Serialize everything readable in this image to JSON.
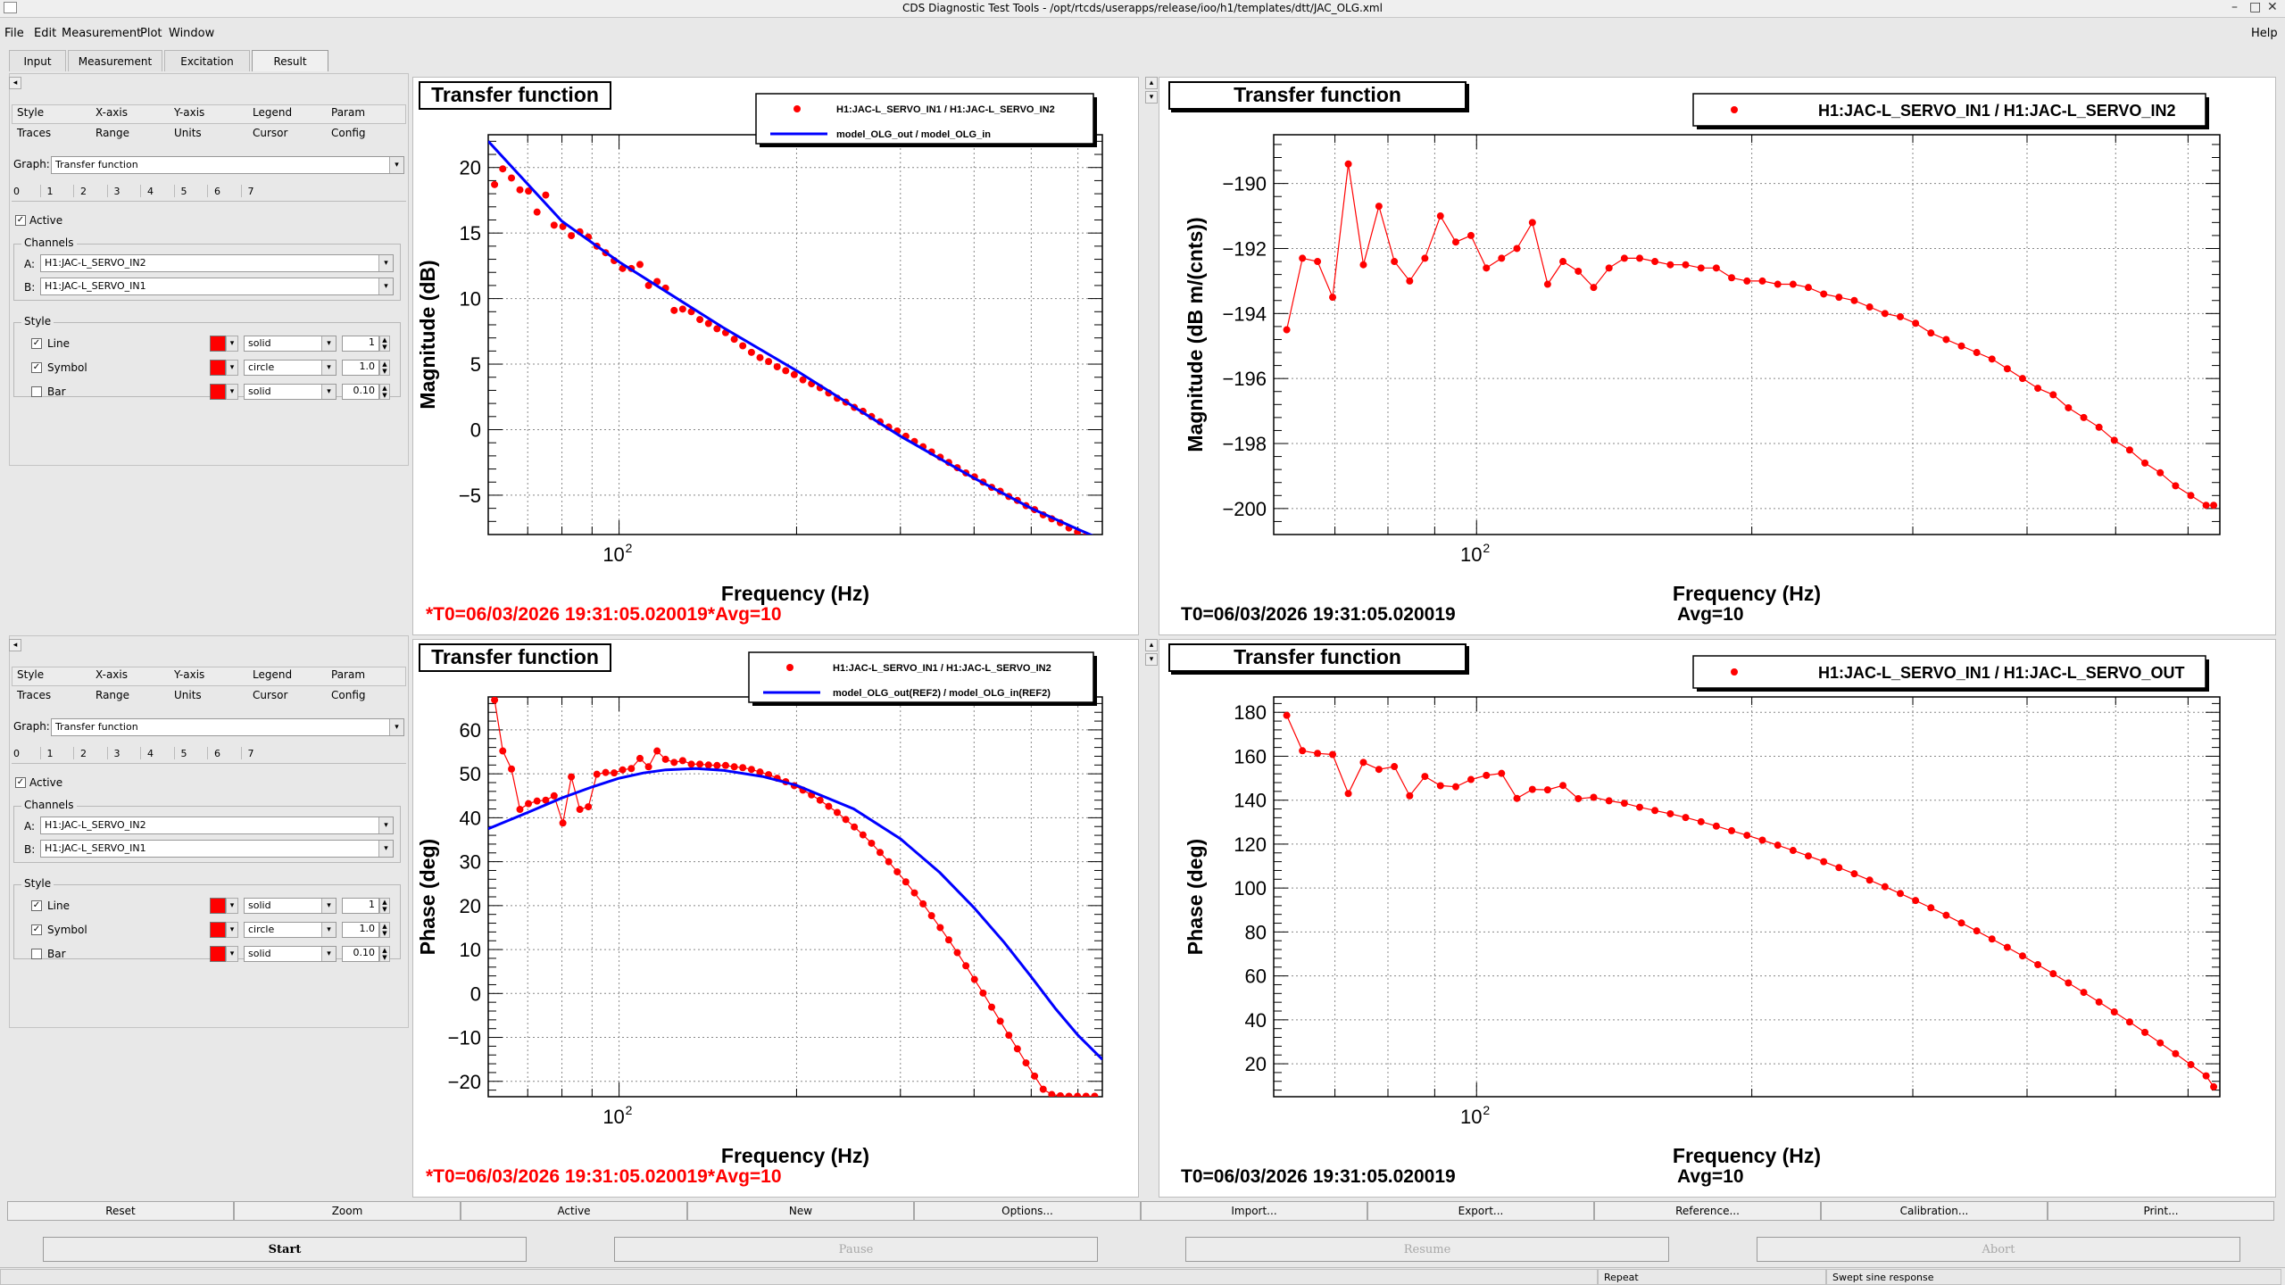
{
  "window": {
    "title": "CDS Diagnostic Test Tools - /opt/rtcds/userapps/release/ioo/h1/templates/dtt/JAC_OLG.xml",
    "help": "Help"
  },
  "menu": [
    "File",
    "Edit",
    "Measurement",
    "Plot",
    "Window"
  ],
  "main_tabs": [
    "Input",
    "Measurement",
    "Excitation",
    "Result"
  ],
  "panels": [
    {
      "tabs_row1": [
        "Style",
        "X-axis",
        "Y-axis",
        "Legend",
        "Param"
      ],
      "tabs_row2": [
        "Traces",
        "Range",
        "Units",
        "Cursor",
        "Config"
      ],
      "graph_label": "Graph:",
      "graph_value": "Transfer function",
      "trace_numbers": [
        "0",
        "1",
        "2",
        "3",
        "4",
        "5",
        "6",
        "7"
      ],
      "active_label": "Active",
      "channels_title": "Channels",
      "channel_a_label": "A:",
      "channel_a": "H1:JAC-L_SERVO_IN2",
      "channel_b_label": "B:",
      "channel_b": "H1:JAC-L_SERVO_IN1",
      "style_title": "Style",
      "style_rows": [
        {
          "label": "Line",
          "checked": true,
          "kind": "solid",
          "size": "1"
        },
        {
          "label": "Symbol",
          "checked": true,
          "kind": "circle",
          "size": "1.0"
        },
        {
          "label": "Bar",
          "checked": false,
          "kind": "solid",
          "size": "0.10"
        }
      ]
    },
    {
      "tabs_row1": [
        "Style",
        "X-axis",
        "Y-axis",
        "Legend",
        "Param"
      ],
      "tabs_row2": [
        "Traces",
        "Range",
        "Units",
        "Cursor",
        "Config"
      ],
      "graph_label": "Graph:",
      "graph_value": "Transfer function",
      "trace_numbers": [
        "0",
        "1",
        "2",
        "3",
        "4",
        "5",
        "6",
        "7"
      ],
      "active_label": "Active",
      "channels_title": "Channels",
      "channel_a_label": "A:",
      "channel_a": "H1:JAC-L_SERVO_IN2",
      "channel_b_label": "B:",
      "channel_b": "H1:JAC-L_SERVO_IN1",
      "style_title": "Style",
      "style_rows": [
        {
          "label": "Line",
          "checked": true,
          "kind": "solid",
          "size": "1"
        },
        {
          "label": "Symbol",
          "checked": true,
          "kind": "circle",
          "size": "1.0"
        },
        {
          "label": "Bar",
          "checked": false,
          "kind": "solid",
          "size": "0.10"
        }
      ]
    }
  ],
  "plots": [
    {
      "title": "Transfer function",
      "footer_t0": "*T0=06/03/2026 19:31:05.020019*Avg=10",
      "footer_avg": ""
    },
    {
      "title": "Transfer function",
      "footer_t0": "T0=06/03/2026 19:31:05.020019",
      "footer_avg": "Avg=10"
    },
    {
      "title": "Transfer function",
      "footer_t0": "*T0=06/03/2026 19:31:05.020019*Avg=10",
      "footer_avg": ""
    },
    {
      "title": "Transfer function",
      "footer_t0": "T0=06/03/2026 19:31:05.020019",
      "footer_avg": "Avg=10"
    }
  ],
  "bottom_buttons": [
    "Reset",
    "Zoom",
    "Active",
    "New",
    "Options...",
    "Import...",
    "Export...",
    "Reference...",
    "Calibration...",
    "Print..."
  ],
  "action_buttons": [
    "Start",
    "Pause",
    "Resume",
    "Abort"
  ],
  "status": {
    "repeat": "Repeat",
    "mode": "Swept sine response"
  },
  "chart_data": [
    {
      "type": "line",
      "title": "Transfer function",
      "xlabel": "Frequency (Hz)",
      "ylabel": "Magnitude (dB)",
      "xscale": "log",
      "xlim": [
        60,
        660
      ],
      "ylim": [
        -8,
        22.5
      ],
      "xticks": [
        {
          "v": 100,
          "base": "10",
          "exp": "2"
        }
      ],
      "yticks": [
        -5,
        0,
        5,
        10,
        15,
        20
      ],
      "legend_position": "top-right",
      "grid": true,
      "series": [
        {
          "name": "H1:JAC-L_SERVO_IN1 / H1:JAC-L_SERVO_IN2",
          "color": "#ff0000",
          "marker": "circle",
          "line": false,
          "x": [
            61.5,
            63.5,
            65.7,
            67.9,
            70.2,
            72.6,
            75.1,
            77.6,
            80.3,
            83.0,
            85.8,
            88.7,
            91.7,
            94.9,
            98.1,
            101.4,
            104.9,
            108.5,
            112.2,
            116.0,
            119.9,
            124.0,
            128.2,
            132.6,
            137.1,
            141.8,
            146.6,
            151.6,
            156.8,
            162.1,
            167.7,
            173.4,
            179.3,
            185.4,
            191.7,
            198.2,
            205.0,
            212.0,
            219.2,
            226.7,
            234.4,
            242.4,
            250.6,
            259.2,
            268.0,
            277.1,
            286.6,
            296.3,
            306.4,
            316.9,
            327.7,
            338.8,
            350.4,
            362.3,
            374.6,
            387.4,
            400.6,
            414.3,
            428.4,
            443.0,
            458.1,
            473.7,
            489.9,
            506.6,
            523.9,
            541.7,
            560.2,
            579.3,
            599.0,
            619.4,
            640.5,
            655.0
          ],
          "y": [
            18.7,
            19.9,
            19.2,
            18.3,
            18.2,
            16.6,
            17.9,
            15.6,
            15.5,
            14.8,
            15.1,
            14.7,
            14.0,
            13.5,
            12.9,
            12.3,
            12.3,
            12.6,
            11.0,
            11.3,
            10.8,
            9.1,
            9.2,
            9.0,
            8.4,
            8.1,
            7.7,
            7.4,
            6.9,
            6.4,
            5.9,
            5.5,
            5.2,
            4.8,
            4.5,
            4.2,
            3.8,
            3.5,
            3.2,
            2.8,
            2.4,
            2.1,
            1.7,
            1.4,
            1.0,
            0.6,
            0.2,
            -0.1,
            -0.5,
            -0.9,
            -1.3,
            -1.7,
            -2.1,
            -2.5,
            -2.9,
            -3.3,
            -3.6,
            -4.0,
            -4.4,
            -4.7,
            -5.1,
            -5.4,
            -5.8,
            -6.1,
            -6.5,
            -6.8,
            -7.1,
            -7.5,
            -7.8,
            -8.1,
            -8.4,
            -8.7
          ]
        },
        {
          "name": "model_OLG_out / model_OLG_in",
          "color": "#0000ff",
          "marker": "none",
          "line": true,
          "x": [
            60,
            80,
            100,
            150,
            200,
            300,
            400,
            500,
            600,
            660
          ],
          "y": [
            22.0,
            15.9,
            12.8,
            7.8,
            4.5,
            -0.5,
            -3.7,
            -6.0,
            -7.6,
            -8.4
          ]
        }
      ]
    },
    {
      "type": "line",
      "title": "Transfer function",
      "xlabel": "Frequency (Hz)",
      "ylabel": "Magnitude (dB m/(cnts))",
      "xscale": "log",
      "xlim": [
        60,
        650
      ],
      "ylim": [
        -200.8,
        -188.5
      ],
      "xticks": [
        {
          "v": 100,
          "base": "10",
          "exp": "2"
        }
      ],
      "yticks": [
        -200,
        -198,
        -196,
        -194,
        -192,
        -190
      ],
      "legend_position": "top-right",
      "grid": true,
      "series": [
        {
          "name": "H1:JAC-L_SERVO_IN1 / H1:JAC-L_SERVO_IN2",
          "color": "#ff0000",
          "marker": "circle",
          "line": true,
          "x": [
            62.0,
            64.5,
            67.0,
            69.6,
            72.4,
            75.2,
            78.2,
            81.3,
            84.5,
            87.8,
            91.3,
            94.9,
            98.6,
            102.5,
            106.5,
            110.7,
            115.1,
            119.6,
            124.3,
            129.2,
            134.3,
            139.6,
            145.1,
            150.8,
            156.7,
            162.9,
            169.3,
            176.0,
            182.9,
            190.1,
            197.6,
            205.4,
            213.5,
            221.9,
            230.6,
            239.7,
            249.1,
            258.9,
            269.1,
            279.7,
            290.7,
            302.1,
            314.0,
            326.3,
            339.1,
            352.4,
            366.2,
            380.6,
            395.5,
            411.0,
            427.2,
            443.9,
            461.4,
            479.5,
            498.3,
            517.9,
            538.2,
            559.4,
            581.4,
            604.2,
            627.9,
            640.0
          ],
          "y": [
            -194.5,
            -192.3,
            -192.4,
            -193.5,
            -189.4,
            -192.5,
            -190.7,
            -192.4,
            -193.0,
            -192.3,
            -191.0,
            -191.8,
            -191.6,
            -192.6,
            -192.3,
            -192.0,
            -191.2,
            -193.1,
            -192.4,
            -192.7,
            -193.2,
            -192.6,
            -192.3,
            -192.3,
            -192.4,
            -192.5,
            -192.5,
            -192.6,
            -192.6,
            -192.9,
            -193.0,
            -193.0,
            -193.1,
            -193.1,
            -193.2,
            -193.4,
            -193.5,
            -193.6,
            -193.8,
            -194.0,
            -194.1,
            -194.3,
            -194.6,
            -194.8,
            -195.0,
            -195.2,
            -195.4,
            -195.7,
            -196.0,
            -196.3,
            -196.5,
            -196.9,
            -197.2,
            -197.5,
            -197.9,
            -198.2,
            -198.6,
            -198.9,
            -199.3,
            -199.6,
            -199.9,
            -199.9
          ]
        }
      ]
    },
    {
      "type": "line",
      "title": "Transfer function",
      "xlabel": "Frequency (Hz)",
      "ylabel": "Phase (deg)",
      "xscale": "log",
      "xlim": [
        60,
        660
      ],
      "ylim": [
        -23.5,
        67.5
      ],
      "xticks": [
        {
          "v": 100,
          "base": "10",
          "exp": "2"
        }
      ],
      "yticks": [
        -20,
        -10,
        0,
        10,
        20,
        30,
        40,
        50,
        60
      ],
      "legend_position": "top-right",
      "grid": true,
      "series": [
        {
          "name": "H1:JAC-L_SERVO_IN1 / H1:JAC-L_SERVO_IN2",
          "color": "#ff0000",
          "marker": "circle",
          "line": true,
          "x": [
            61.5,
            63.5,
            65.7,
            67.9,
            70.2,
            72.6,
            75.1,
            77.6,
            80.3,
            83.0,
            85.8,
            88.7,
            91.7,
            94.9,
            98.1,
            101.4,
            104.9,
            108.5,
            112.2,
            116.0,
            119.9,
            124.0,
            128.2,
            132.6,
            137.1,
            141.8,
            146.6,
            151.6,
            156.8,
            162.1,
            167.7,
            173.4,
            179.3,
            185.4,
            191.7,
            198.2,
            205.0,
            212.0,
            219.2,
            226.7,
            234.4,
            242.4,
            250.6,
            259.2,
            268.0,
            277.1,
            286.6,
            296.3,
            306.4,
            316.9,
            327.7,
            338.8,
            350.4,
            362.3,
            374.6,
            387.4,
            400.6,
            414.3,
            428.4,
            443.0,
            458.1,
            473.7,
            489.9,
            506.6,
            523.9,
            541.7,
            560.2,
            579.3,
            599.0,
            619.4,
            640.5
          ],
          "y": [
            66.8,
            55.2,
            51.1,
            41.9,
            43.2,
            43.8,
            44.0,
            45.0,
            38.8,
            49.3,
            41.9,
            42.5,
            49.9,
            50.3,
            50.2,
            50.9,
            51.2,
            53.5,
            51.6,
            55.2,
            53.3,
            52.6,
            53.0,
            52.2,
            52.2,
            52.0,
            51.9,
            51.9,
            51.6,
            51.4,
            51.0,
            50.4,
            49.8,
            49.0,
            48.2,
            47.3,
            46.3,
            45.2,
            44.0,
            42.6,
            41.2,
            39.6,
            37.9,
            36.1,
            34.2,
            32.1,
            30.0,
            27.7,
            25.4,
            22.9,
            20.4,
            17.7,
            15.0,
            12.2,
            9.3,
            6.3,
            3.2,
            0.1,
            -3.1,
            -6.3,
            -9.5,
            -12.6,
            -15.8,
            -18.8,
            -21.8,
            -23.0,
            -23.3,
            -23.4,
            -23.4,
            -23.4,
            -23.4
          ]
        },
        {
          "name": "model_OLG_out(REF2) / model_OLG_in(REF2)",
          "color": "#0000ff",
          "marker": "none",
          "line": true,
          "x": [
            60,
            70,
            80,
            90,
            100,
            110,
            120,
            135,
            150,
            175,
            200,
            250,
            300,
            350,
            400,
            450,
            500,
            550,
            600,
            660
          ],
          "y": [
            37.5,
            41.2,
            44.5,
            47.0,
            49.0,
            50.2,
            50.9,
            51.2,
            50.8,
            49.4,
            47.4,
            42.0,
            35.2,
            27.5,
            19.5,
            11.6,
            3.8,
            -3.5,
            -9.5,
            -15.0
          ]
        }
      ]
    },
    {
      "type": "line",
      "title": "Transfer function",
      "xlabel": "Frequency (Hz)",
      "ylabel": "Phase (deg)",
      "xscale": "log",
      "xlim": [
        60,
        650
      ],
      "ylim": [
        5,
        187
      ],
      "xticks": [
        {
          "v": 100,
          "base": "10",
          "exp": "2"
        }
      ],
      "yticks": [
        20,
        40,
        60,
        80,
        100,
        120,
        140,
        160,
        180
      ],
      "legend_position": "top-right",
      "grid": true,
      "series": [
        {
          "name": "H1:JAC-L_SERVO_IN1 / H1:JAC-L_SERVO_OUT",
          "color": "#ff0000",
          "marker": "circle",
          "line": true,
          "x": [
            62.0,
            64.5,
            67.0,
            69.6,
            72.4,
            75.2,
            78.2,
            81.3,
            84.5,
            87.8,
            91.3,
            94.9,
            98.6,
            102.5,
            106.5,
            110.7,
            115.1,
            119.6,
            124.3,
            129.2,
            134.3,
            139.6,
            145.1,
            150.8,
            156.7,
            162.9,
            169.3,
            176.0,
            182.9,
            190.1,
            197.6,
            205.4,
            213.5,
            221.9,
            230.6,
            239.7,
            249.1,
            258.9,
            269.1,
            279.7,
            290.7,
            302.1,
            314.0,
            326.3,
            339.1,
            352.4,
            366.2,
            380.6,
            395.5,
            411.0,
            427.2,
            443.9,
            461.4,
            479.5,
            498.3,
            517.9,
            538.2,
            559.4,
            581.4,
            604.2,
            627.9,
            640.0
          ],
          "y": [
            178.6,
            162.5,
            161.3,
            160.8,
            143.0,
            157.2,
            154.0,
            155.3,
            142.0,
            150.8,
            146.6,
            146.1,
            149.4,
            151.3,
            152.2,
            140.8,
            144.9,
            144.7,
            146.7,
            140.7,
            141.3,
            139.7,
            138.6,
            136.8,
            135.3,
            133.8,
            132.1,
            130.2,
            128.2,
            126.1,
            124.0,
            121.8,
            119.5,
            117.1,
            114.6,
            112.0,
            109.3,
            106.5,
            103.6,
            100.6,
            97.5,
            94.3,
            91.0,
            87.6,
            84.1,
            80.5,
            76.8,
            73.0,
            69.1,
            65.1,
            61.0,
            56.8,
            52.5,
            48.1,
            43.6,
            39.0,
            34.3,
            29.5,
            24.6,
            19.6,
            14.5,
            9.5
          ]
        }
      ]
    }
  ]
}
